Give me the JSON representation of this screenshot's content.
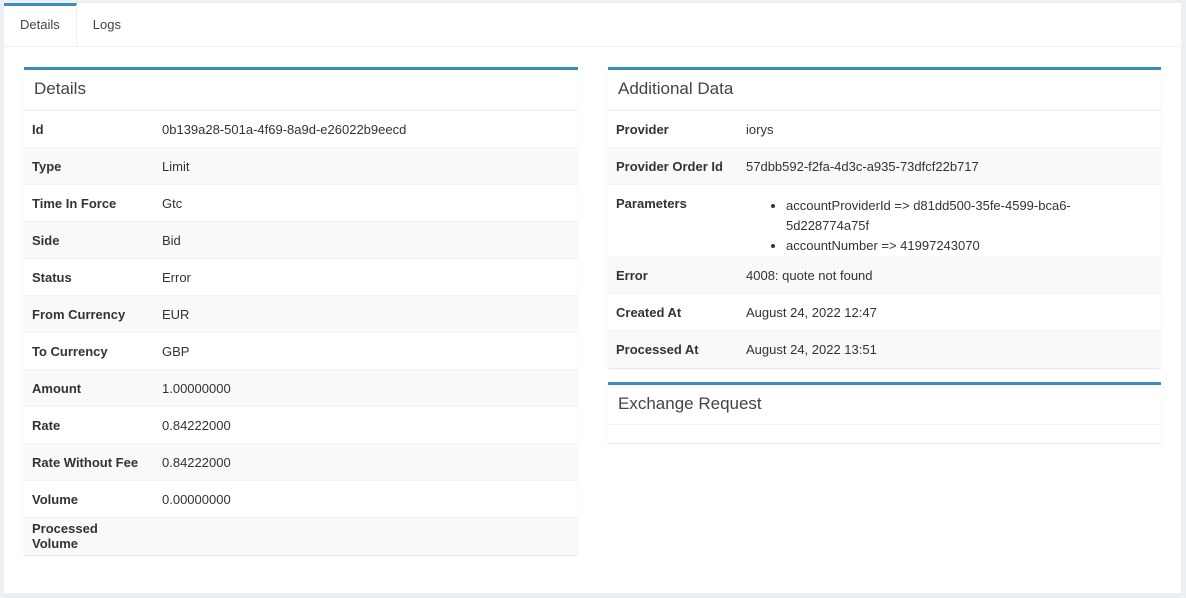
{
  "tabs": [
    "Details",
    "Logs"
  ],
  "details": {
    "title": "Details",
    "rows": [
      {
        "label": "Id",
        "value": "0b139a28-501a-4f69-8a9d-e26022b9eecd"
      },
      {
        "label": "Type",
        "value": "Limit"
      },
      {
        "label": "Time In Force",
        "value": "Gtc"
      },
      {
        "label": "Side",
        "value": "Bid"
      },
      {
        "label": "Status",
        "value": "Error"
      },
      {
        "label": "From Currency",
        "value": "EUR"
      },
      {
        "label": "To Currency",
        "value": "GBP"
      },
      {
        "label": "Amount",
        "value": "1.00000000"
      },
      {
        "label": "Rate",
        "value": "0.84222000"
      },
      {
        "label": "Rate Without Fee",
        "value": "0.84222000"
      },
      {
        "label": "Volume",
        "value": "0.00000000"
      },
      {
        "label": "Processed Volume",
        "value": ""
      }
    ]
  },
  "additional": {
    "title": "Additional Data",
    "provider": {
      "label": "Provider",
      "value": "iorys"
    },
    "provider_order_id": {
      "label": "Provider Order Id",
      "value": "57dbb592-f2fa-4d3c-a935-73dfcf22b717"
    },
    "parameters": {
      "label": "Parameters",
      "items": [
        "accountProviderId => d81dd500-35fe-4599-bca6-5d228774a75f",
        "accountNumber => 41997243070"
      ]
    },
    "error": {
      "label": "Error",
      "value": "4008: quote not found"
    },
    "created_at": {
      "label": "Created At",
      "value": "August 24, 2022 12:47"
    },
    "processed_at": {
      "label": "Processed At",
      "value": "August 24, 2022 13:51"
    }
  },
  "exchange_request": {
    "title": "Exchange Request"
  }
}
